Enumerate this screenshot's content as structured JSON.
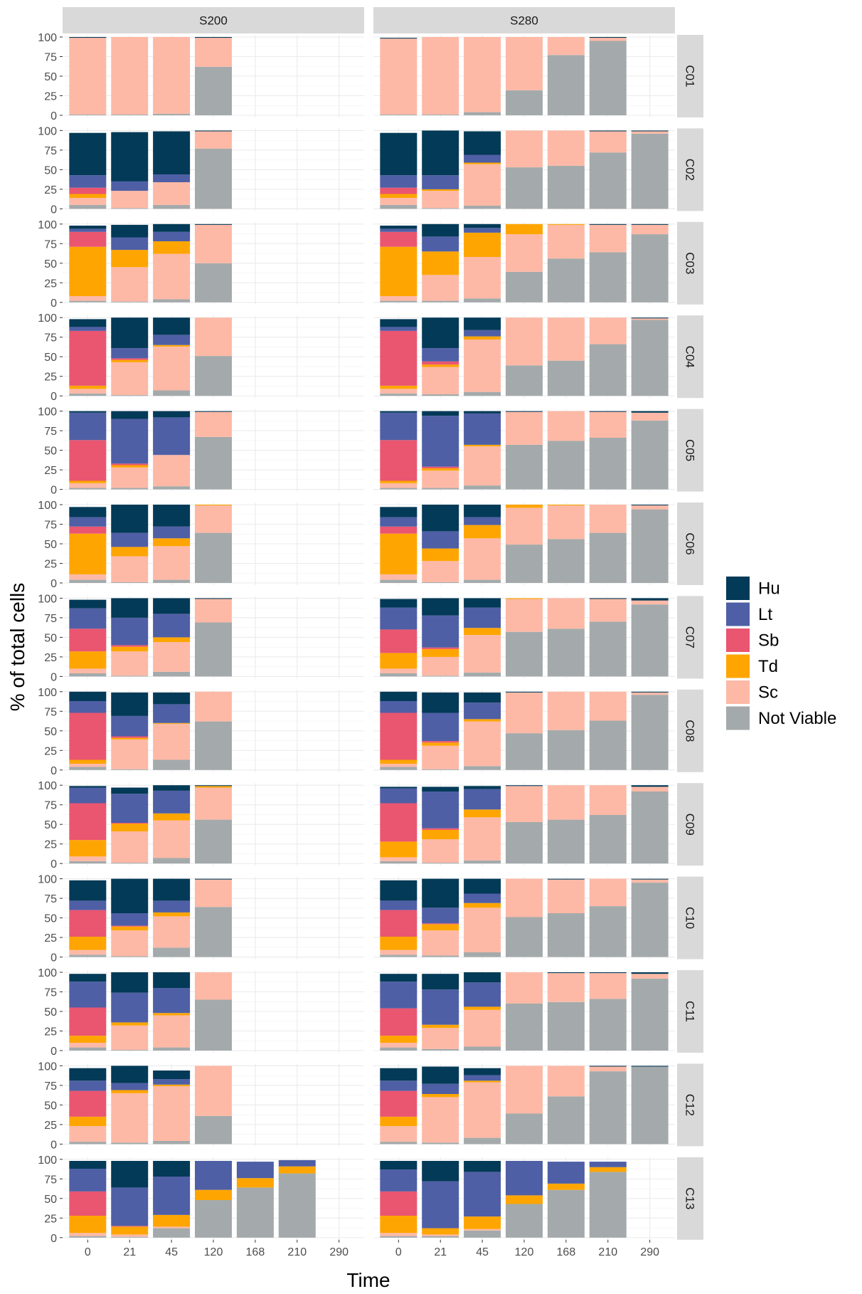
{
  "chart_data": {
    "type": "bar",
    "stacked": true,
    "xlabel": "Time",
    "ylabel": "% of total cells",
    "x_categories": [
      "0",
      "21",
      "45",
      "120",
      "168",
      "210",
      "290"
    ],
    "y_ticks": [
      "0",
      "25",
      "50",
      "75",
      "100"
    ],
    "ylim": [
      0,
      100
    ],
    "grid": true,
    "legend_position": "right",
    "stack_order_bottom_to_top": [
      "Not Viable",
      "Sc",
      "Td",
      "Sb",
      "Lt",
      "Hu"
    ],
    "legend": [
      {
        "name": "Hu",
        "color": "#033a57"
      },
      {
        "name": "Lt",
        "color": "#4f5fa5"
      },
      {
        "name": "Sb",
        "color": "#ea5570"
      },
      {
        "name": "Td",
        "color": "#fea501"
      },
      {
        "name": "Sc",
        "color": "#fdb9a6"
      },
      {
        "name": "Not Viable",
        "color": "#a4aaab"
      }
    ],
    "columns": [
      "S200",
      "S280"
    ],
    "rows": [
      "C01",
      "C02",
      "C03",
      "C04",
      "C05",
      "C06",
      "C07",
      "C08",
      "C09",
      "C10",
      "C11",
      "C12",
      "C13"
    ],
    "panels": {
      "C01": {
        "S200": [
          [
            1,
            98,
            0,
            0,
            0,
            1
          ],
          [
            1,
            99,
            0,
            0,
            0,
            0
          ],
          [
            2,
            98,
            0,
            0,
            0,
            0
          ],
          [
            62,
            37,
            0,
            0,
            0,
            1
          ],
          null,
          null,
          null
        ],
        "S280": [
          [
            1,
            97,
            0,
            0,
            0,
            1
          ],
          [
            1,
            99,
            0,
            0,
            0,
            0
          ],
          [
            4,
            96,
            0,
            0,
            0,
            0
          ],
          [
            32,
            68,
            0,
            0,
            0,
            0
          ],
          [
            77,
            23,
            0,
            0,
            0,
            0
          ],
          [
            95,
            4,
            0,
            0,
            0,
            1
          ],
          null
        ]
      },
      "C02": {
        "S200": [
          [
            5,
            9,
            5,
            8,
            16,
            54
          ],
          [
            1,
            22,
            0,
            0,
            12,
            63
          ],
          [
            5,
            29,
            0,
            0,
            10,
            55
          ],
          [
            77,
            22,
            0,
            0,
            0,
            1
          ],
          null,
          null,
          null
        ],
        "S280": [
          [
            5,
            9,
            5,
            8,
            16,
            54
          ],
          [
            1,
            22,
            2,
            0,
            18,
            57
          ],
          [
            4,
            53,
            2,
            0,
            10,
            30
          ],
          [
            53,
            47,
            0,
            0,
            0,
            0
          ],
          [
            55,
            45,
            0,
            0,
            0,
            0
          ],
          [
            72,
            27,
            0,
            0,
            0,
            1
          ],
          [
            96,
            3,
            0,
            0,
            0,
            1
          ]
        ]
      },
      "C03": {
        "S200": [
          [
            2,
            6,
            63,
            19,
            4,
            4
          ],
          [
            1,
            44,
            22,
            0,
            16,
            16
          ],
          [
            4,
            58,
            16,
            0,
            12,
            10
          ],
          [
            50,
            49,
            0,
            0,
            0,
            1
          ],
          null,
          null,
          null
        ],
        "S280": [
          [
            2,
            6,
            63,
            19,
            4,
            4
          ],
          [
            2,
            33,
            30,
            0,
            19,
            16
          ],
          [
            5,
            53,
            31,
            0,
            6,
            5
          ],
          [
            39,
            48,
            13,
            0,
            0,
            0
          ],
          [
            56,
            43,
            1,
            0,
            0,
            0
          ],
          [
            64,
            35,
            0,
            0,
            0,
            1
          ],
          [
            87,
            12,
            0,
            0,
            0,
            1
          ]
        ]
      },
      "C04": {
        "S200": [
          [
            3,
            6,
            4,
            70,
            5,
            10
          ],
          [
            1,
            42,
            3,
            2,
            13,
            39
          ],
          [
            7,
            56,
            2,
            0,
            13,
            22
          ],
          [
            51,
            49,
            0,
            0,
            0,
            0
          ],
          null,
          null,
          null
        ],
        "S280": [
          [
            3,
            6,
            4,
            70,
            5,
            10
          ],
          [
            2,
            35,
            3,
            4,
            17,
            39
          ],
          [
            5,
            67,
            4,
            0,
            8,
            16
          ],
          [
            39,
            61,
            0,
            0,
            0,
            0
          ],
          [
            45,
            55,
            0,
            0,
            0,
            0
          ],
          [
            66,
            34,
            0,
            0,
            0,
            0
          ],
          [
            97,
            2,
            0,
            0,
            0,
            1
          ]
        ]
      },
      "C05": {
        "S200": [
          [
            2,
            6,
            3,
            52,
            35,
            2
          ],
          [
            2,
            26,
            3,
            2,
            57,
            10
          ],
          [
            4,
            40,
            0,
            0,
            48,
            8
          ],
          [
            67,
            32,
            0,
            0,
            0,
            1
          ],
          null,
          null,
          null
        ],
        "S280": [
          [
            2,
            6,
            3,
            52,
            35,
            2
          ],
          [
            2,
            22,
            3,
            2,
            65,
            6
          ],
          [
            5,
            50,
            2,
            0,
            40,
            3
          ],
          [
            57,
            42,
            0,
            0,
            0,
            1
          ],
          [
            62,
            38,
            0,
            0,
            0,
            0
          ],
          [
            66,
            33,
            0,
            0,
            0,
            1
          ],
          [
            88,
            10,
            0,
            0,
            0,
            2
          ]
        ]
      },
      "C06": {
        "S200": [
          [
            4,
            7,
            52,
            9,
            12,
            13
          ],
          [
            1,
            33,
            12,
            0,
            18,
            36
          ],
          [
            4,
            43,
            10,
            0,
            15,
            28
          ],
          [
            64,
            35,
            1,
            0,
            0,
            0
          ],
          null,
          null,
          null
        ],
        "S280": [
          [
            4,
            7,
            52,
            9,
            12,
            13
          ],
          [
            1,
            27,
            16,
            0,
            22,
            34
          ],
          [
            4,
            53,
            17,
            0,
            10,
            16
          ],
          [
            49,
            47,
            4,
            0,
            0,
            0
          ],
          [
            56,
            43,
            1,
            0,
            0,
            0
          ],
          [
            64,
            36,
            0,
            0,
            0,
            0
          ],
          [
            94,
            5,
            0,
            0,
            0,
            1
          ]
        ]
      },
      "C07": {
        "S200": [
          [
            4,
            6,
            22,
            29,
            26,
            11
          ],
          [
            1,
            31,
            6,
            2,
            35,
            25
          ],
          [
            6,
            38,
            6,
            0,
            30,
            20
          ],
          [
            69,
            30,
            0,
            0,
            0,
            1
          ],
          null,
          null,
          null
        ],
        "S280": [
          [
            4,
            6,
            20,
            30,
            28,
            11
          ],
          [
            1,
            24,
            10,
            2,
            41,
            22
          ],
          [
            5,
            48,
            9,
            0,
            26,
            12
          ],
          [
            57,
            42,
            1,
            0,
            0,
            0
          ],
          [
            61,
            39,
            0,
            0,
            0,
            0
          ],
          [
            70,
            29,
            0,
            0,
            0,
            1
          ],
          [
            92,
            5,
            0,
            0,
            0,
            3
          ]
        ]
      },
      "C08": {
        "S200": [
          [
            4,
            4,
            5,
            60,
            15,
            12
          ],
          [
            1,
            38,
            2,
            2,
            26,
            30
          ],
          [
            13,
            46,
            1,
            0,
            24,
            15
          ],
          [
            62,
            38,
            0,
            0,
            0,
            0
          ],
          null,
          null,
          null
        ],
        "S280": [
          [
            4,
            4,
            5,
            60,
            15,
            12
          ],
          [
            1,
            30,
            4,
            2,
            36,
            26
          ],
          [
            5,
            57,
            3,
            0,
            21,
            13
          ],
          [
            47,
            52,
            0,
            0,
            0,
            1
          ],
          [
            51,
            49,
            0,
            0,
            0,
            0
          ],
          [
            63,
            37,
            0,
            0,
            0,
            0
          ],
          [
            96,
            3,
            0,
            0,
            0,
            1
          ]
        ]
      },
      "C09": {
        "S200": [
          [
            3,
            6,
            21,
            47,
            20,
            2
          ],
          [
            1,
            40,
            10,
            1,
            37,
            8
          ],
          [
            7,
            48,
            9,
            0,
            29,
            7
          ],
          [
            56,
            41,
            2,
            0,
            0,
            1
          ],
          null,
          null,
          null
        ],
        "S280": [
          [
            3,
            5,
            20,
            49,
            19,
            2
          ],
          [
            1,
            30,
            12,
            2,
            47,
            6
          ],
          [
            4,
            55,
            10,
            0,
            26,
            4
          ],
          [
            53,
            46,
            0,
            0,
            0,
            1
          ],
          [
            56,
            44,
            0,
            0,
            0,
            0
          ],
          [
            62,
            38,
            0,
            0,
            0,
            0
          ],
          [
            92,
            6,
            0,
            0,
            0,
            2
          ]
        ]
      },
      "C10": {
        "S200": [
          [
            3,
            6,
            17,
            34,
            12,
            26
          ],
          [
            1,
            33,
            5,
            1,
            16,
            44
          ],
          [
            12,
            40,
            5,
            0,
            15,
            28
          ],
          [
            64,
            35,
            0,
            0,
            0,
            1
          ],
          null,
          null,
          null
        ],
        "S280": [
          [
            3,
            6,
            17,
            34,
            12,
            26
          ],
          [
            2,
            32,
            8,
            1,
            20,
            37
          ],
          [
            6,
            57,
            6,
            0,
            12,
            19
          ],
          [
            51,
            49,
            0,
            0,
            0,
            0
          ],
          [
            56,
            43,
            0,
            0,
            0,
            1
          ],
          [
            65,
            35,
            0,
            0,
            0,
            0
          ],
          [
            95,
            4,
            0,
            0,
            0,
            1
          ]
        ]
      },
      "C11": {
        "S200": [
          [
            4,
            6,
            9,
            36,
            33,
            10
          ],
          [
            1,
            31,
            4,
            0,
            38,
            26
          ],
          [
            4,
            41,
            3,
            0,
            32,
            20
          ],
          [
            65,
            35,
            0,
            0,
            0,
            0
          ],
          null,
          null,
          null
        ],
        "S280": [
          [
            4,
            6,
            9,
            35,
            34,
            10
          ],
          [
            2,
            27,
            4,
            0,
            45,
            20
          ],
          [
            5,
            47,
            4,
            0,
            31,
            13
          ],
          [
            60,
            40,
            0,
            0,
            0,
            0
          ],
          [
            62,
            37,
            0,
            0,
            0,
            1
          ],
          [
            66,
            33,
            0,
            0,
            0,
            1
          ],
          [
            92,
            6,
            0,
            0,
            0,
            2
          ]
        ]
      },
      "C12": {
        "S200": [
          [
            3,
            20,
            12,
            33,
            13,
            16
          ],
          [
            2,
            63,
            4,
            0,
            9,
            22
          ],
          [
            4,
            70,
            2,
            0,
            7,
            11
          ],
          [
            36,
            64,
            0,
            0,
            0,
            0
          ],
          null,
          null,
          null
        ],
        "S280": [
          [
            3,
            20,
            12,
            33,
            13,
            16
          ],
          [
            2,
            58,
            4,
            0,
            13,
            22
          ],
          [
            8,
            71,
            2,
            0,
            7,
            9
          ],
          [
            39,
            61,
            0,
            0,
            0,
            0
          ],
          [
            61,
            39,
            0,
            0,
            0,
            0
          ],
          [
            93,
            6,
            0,
            0,
            0,
            1
          ],
          [
            99,
            0,
            0,
            0,
            0,
            1
          ]
        ]
      },
      "C13": {
        "S200": [
          [
            2,
            4,
            22,
            31,
            29,
            10
          ],
          [
            1,
            3,
            10,
            1,
            49,
            34
          ],
          [
            12,
            2,
            15,
            0,
            49,
            20
          ],
          [
            48,
            0,
            13,
            0,
            37,
            0
          ],
          [
            64,
            0,
            12,
            0,
            21,
            0
          ],
          [
            82,
            0,
            9,
            0,
            8,
            0
          ],
          null
        ],
        "S280": [
          [
            2,
            4,
            22,
            31,
            28,
            11
          ],
          [
            2,
            2,
            8,
            0,
            60,
            26
          ],
          [
            9,
            2,
            16,
            0,
            57,
            14
          ],
          [
            43,
            0,
            11,
            0,
            44,
            0
          ],
          [
            61,
            0,
            8,
            0,
            28,
            0
          ],
          [
            84,
            0,
            6,
            0,
            7,
            0
          ],
          null
        ]
      }
    }
  }
}
